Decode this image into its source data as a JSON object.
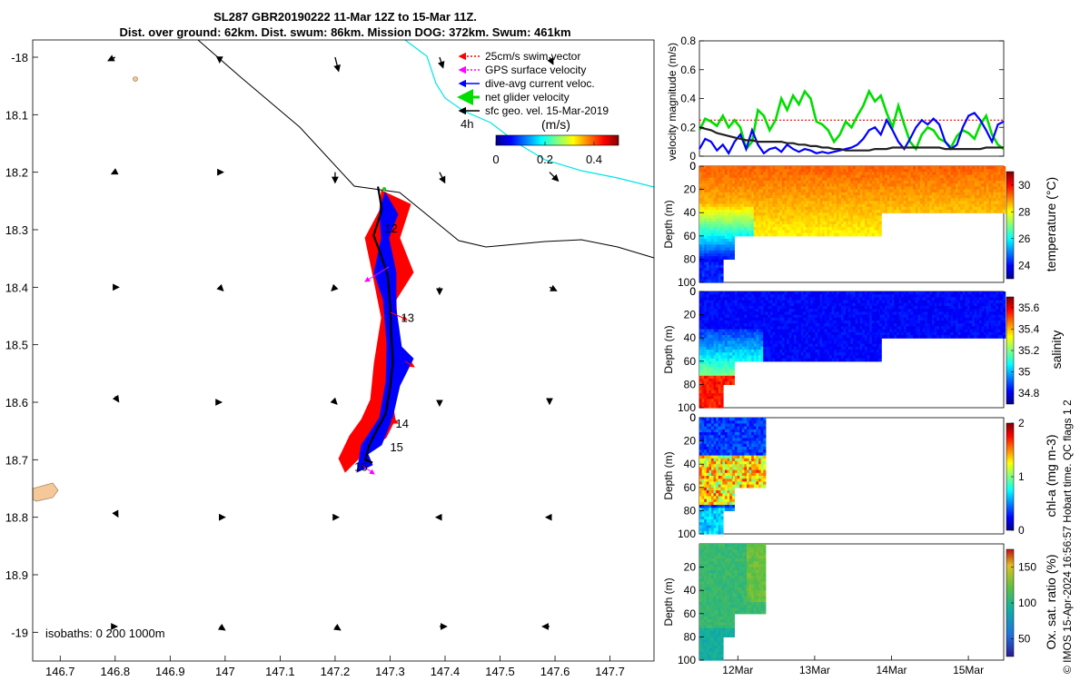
{
  "title_line1": "SL287 GBR20190222 11-Mar 12Z to 15-Mar 11Z.",
  "title_line2": "Dist. over ground: 62km. Dist. swum: 86km. Mission DOG: 372km. Swum: 461km",
  "side_text": "© IMOS 15-Apr-2024 16:56:57 Hobart time. QC flags 1  2",
  "colors": {
    "swim": "#ff0000",
    "gps": "#ff00ff",
    "dive_avg": "#0000ff",
    "net": "#00dd00",
    "sfc_geo": "#000000",
    "coast": "#00e5e5",
    "land": "#f5c89a"
  },
  "chart_data": [
    {
      "type": "map",
      "xlim": [
        146.65,
        147.78
      ],
      "ylim": [
        -19.05,
        -17.97
      ],
      "x_ticks": [
        "146.7",
        "146.8",
        "146.9",
        "147",
        "147.1",
        "147.2",
        "147.3",
        "147.4",
        "147.5",
        "147.6",
        "147.7"
      ],
      "y_ticks": [
        "-18",
        "18.1",
        "18.2",
        "18.3",
        "18.4",
        "18.5",
        "18.6",
        "18.7",
        "18.8",
        "18.9",
        "-19"
      ],
      "legend": [
        {
          "label": "25cm/s swim vector",
          "color": "#ff0000"
        },
        {
          "label": "GPS surface velocity",
          "color": "#ff00ff"
        },
        {
          "label": "dive-avg current veloc.",
          "color": "#0000ff"
        },
        {
          "label": "net glider velocity",
          "color": "#00dd00"
        },
        {
          "label": "sfc geo. vel. 15-Mar-2019",
          "color": "#000000"
        }
      ],
      "duration_label": "4h",
      "colorbar": {
        "label": "(m/s)",
        "ticks": [
          "0",
          "0.2",
          "0.4"
        ],
        "range": [
          0,
          0.5
        ]
      },
      "day_labels": [
        "12",
        "13",
        "14",
        "15",
        "16"
      ],
      "isobaths_label": "isobaths: 0   200  1000m",
      "track": [
        [
          147.278,
          -18.225
        ],
        [
          147.285,
          -18.265
        ],
        [
          147.27,
          -18.31
        ],
        [
          147.282,
          -18.34
        ],
        [
          147.296,
          -18.38
        ],
        [
          147.3,
          -18.43
        ],
        [
          147.302,
          -18.48
        ],
        [
          147.305,
          -18.53
        ],
        [
          147.3,
          -18.575
        ],
        [
          147.292,
          -18.62
        ],
        [
          147.275,
          -18.65
        ],
        [
          147.262,
          -18.675
        ],
        [
          147.255,
          -18.7
        ],
        [
          147.268,
          -18.705
        ]
      ],
      "sfc_vectors": [
        [
          146.8,
          -18.0,
          -0.02,
          -0.01
        ],
        [
          146.99,
          -18.0,
          0.0,
          -0.015
        ],
        [
          147.2,
          -18.0,
          0.01,
          -0.04
        ],
        [
          147.39,
          -18.0,
          0.01,
          -0.03
        ],
        [
          147.59,
          -18.0,
          0.01,
          -0.02
        ],
        [
          146.8,
          -18.2,
          -0.01,
          -0.005
        ],
        [
          146.99,
          -18.2,
          0.01,
          0.0
        ],
        [
          147.2,
          -18.2,
          0.0,
          -0.03
        ],
        [
          147.39,
          -18.2,
          0.015,
          -0.03
        ],
        [
          147.59,
          -18.2,
          0.025,
          -0.025
        ],
        [
          146.8,
          -18.4,
          0.01,
          0.0
        ],
        [
          146.99,
          -18.4,
          0.01,
          -0.01
        ],
        [
          147.2,
          -18.4,
          -0.01,
          -0.01
        ],
        [
          147.39,
          -18.4,
          0.0,
          -0.02
        ],
        [
          147.59,
          -18.4,
          0.02,
          -0.01
        ],
        [
          146.8,
          -18.59,
          0.01,
          -0.015
        ],
        [
          146.99,
          -18.6,
          0.005,
          0.0
        ],
        [
          147.2,
          -18.6,
          0.005,
          -0.005
        ],
        [
          147.39,
          -18.6,
          0.0,
          -0.01
        ],
        [
          147.59,
          -18.6,
          0.0,
          -0.005
        ],
        [
          146.8,
          -18.79,
          0.008,
          -0.015
        ],
        [
          146.99,
          -18.8,
          0.015,
          0.0
        ],
        [
          147.2,
          -18.8,
          0.01,
          0.0
        ],
        [
          147.39,
          -18.8,
          -0.01,
          0.0
        ],
        [
          147.59,
          -18.8,
          -0.01,
          0.0
        ],
        [
          146.8,
          -18.99,
          0.005,
          0.0
        ],
        [
          146.99,
          -18.99,
          0.015,
          -0.01
        ],
        [
          147.2,
          -18.99,
          0.015,
          -0.01
        ],
        [
          147.39,
          -18.99,
          0.02,
          0.0
        ],
        [
          147.59,
          -18.99,
          -0.02,
          0.0
        ]
      ]
    },
    {
      "type": "line",
      "ylabel": "velocity magnitude (m/s)",
      "ylim": [
        0,
        0.8
      ],
      "y_ticks": [
        "0",
        "0.2",
        "0.4",
        "0.6",
        "0.8"
      ],
      "x_range_days": [
        11.5,
        15.46
      ],
      "swim_speed_line": 0.25,
      "series": [
        {
          "name": "net glider velocity",
          "color": "#00dd00",
          "values": [
            0.18,
            0.26,
            0.24,
            0.21,
            0.28,
            0.2,
            0.25,
            0.2,
            0.05,
            0.1,
            0.32,
            0.28,
            0.18,
            0.25,
            0.4,
            0.32,
            0.42,
            0.36,
            0.45,
            0.4,
            0.24,
            0.22,
            0.18,
            0.1,
            0.15,
            0.24,
            0.2,
            0.28,
            0.35,
            0.45,
            0.38,
            0.42,
            0.3,
            0.2,
            0.35,
            0.22,
            0.1,
            0.05,
            0.15,
            0.2,
            0.18,
            0.12,
            0.1,
            0.06,
            0.14,
            0.18,
            0.16,
            0.12,
            0.22,
            0.28,
            0.15,
            0.08,
            0.05
          ]
        },
        {
          "name": "dive-avg current veloc.",
          "color": "#0000ff",
          "values": [
            0.05,
            0.12,
            0.1,
            0.04,
            0.08,
            0.02,
            0.1,
            0.15,
            0.05,
            0.18,
            0.08,
            0.02,
            0.05,
            0.06,
            0.03,
            0.08,
            0.05,
            0.03,
            0.05,
            0.04,
            0.02,
            0.03,
            0.02,
            0.03,
            0.04,
            0.05,
            0.06,
            0.08,
            0.12,
            0.18,
            0.2,
            0.15,
            0.25,
            0.18,
            0.1,
            0.05,
            0.12,
            0.2,
            0.25,
            0.22,
            0.26,
            0.22,
            0.1,
            0.05,
            0.08,
            0.2,
            0.28,
            0.3,
            0.25,
            0.18,
            0.1,
            0.22,
            0.24
          ]
        },
        {
          "name": "sfc geo. vel.",
          "color": "#222222",
          "values": [
            0.2,
            0.19,
            0.18,
            0.16,
            0.15,
            0.14,
            0.13,
            0.12,
            0.11,
            0.11,
            0.1,
            0.1,
            0.1,
            0.1,
            0.1,
            0.09,
            0.09,
            0.08,
            0.08,
            0.07,
            0.07,
            0.06,
            0.06,
            0.05,
            0.05,
            0.04,
            0.04,
            0.04,
            0.04,
            0.04,
            0.05,
            0.05,
            0.05,
            0.06,
            0.06,
            0.06,
            0.06,
            0.06,
            0.06,
            0.06,
            0.06,
            0.06,
            0.05,
            0.05,
            0.05,
            0.05,
            0.05,
            0.05,
            0.05,
            0.06,
            0.06,
            0.06,
            0.06
          ]
        }
      ]
    },
    {
      "type": "heatmap",
      "variable": "temperature",
      "ylabel": "Depth (m)",
      "y_ticks": [
        "0",
        "20",
        "40",
        "60",
        "80",
        "100"
      ],
      "cbar_label": "temperature (°C)",
      "cbar_ticks": [
        "24",
        "26",
        "28",
        "30"
      ],
      "vrange": [
        23,
        31
      ]
    },
    {
      "type": "heatmap",
      "variable": "salinity",
      "ylabel": "Depth (m)",
      "y_ticks": [
        "0",
        "20",
        "40",
        "60",
        "80",
        "100"
      ],
      "cbar_label": "salinity",
      "cbar_ticks": [
        "34.8",
        "35",
        "35.2",
        "35.4",
        "35.6"
      ],
      "vrange": [
        34.7,
        35.7
      ]
    },
    {
      "type": "heatmap",
      "variable": "chl-a",
      "ylabel": "Depth (m)",
      "y_ticks": [
        "0",
        "20",
        "40",
        "60",
        "80",
        "100"
      ],
      "cbar_label": "chl-a (mg m-3)",
      "cbar_ticks": [
        "0",
        "1",
        "2"
      ],
      "vrange": [
        0,
        2
      ]
    },
    {
      "type": "heatmap",
      "variable": "oxygen saturation",
      "ylabel": "Depth (m)",
      "y_ticks": [
        "20",
        "40",
        "60",
        "80",
        "100"
      ],
      "cbar_label": "Ox. sat. ratio (%)",
      "cbar_ticks": [
        "50",
        "100",
        "150"
      ],
      "vrange": [
        25,
        175
      ],
      "x_ticks": [
        "12Mar",
        "13Mar",
        "14Mar",
        "15Mar"
      ]
    }
  ]
}
